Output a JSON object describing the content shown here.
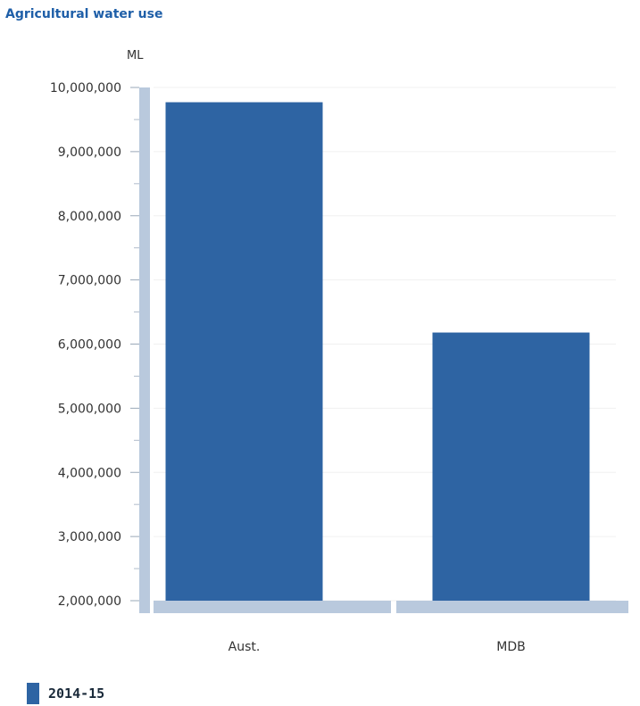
{
  "chart_data": {
    "type": "bar",
    "title": "Agricultural water use",
    "ylabel": "ML",
    "xlabel": "",
    "categories": [
      "Aust.",
      "MDB"
    ],
    "series": [
      {
        "name": "2014-15",
        "values": [
          9770000,
          6180000
        ]
      }
    ],
    "ylim": [
      2000000,
      10000000
    ],
    "yticks": [
      2000000,
      3000000,
      4000000,
      5000000,
      6000000,
      7000000,
      8000000,
      9000000,
      10000000
    ],
    "ytick_labels": [
      "2,000,000",
      "3,000,000",
      "4,000,000",
      "5,000,000",
      "6,000,000",
      "7,000,000",
      "8,000,000",
      "9,000,000",
      "10,000,000"
    ],
    "grid": true,
    "legend": "bottom-left",
    "colors": {
      "bar": "#2e64a3",
      "axis": "#b9c9dd",
      "grid": "#f0f0f0"
    }
  }
}
